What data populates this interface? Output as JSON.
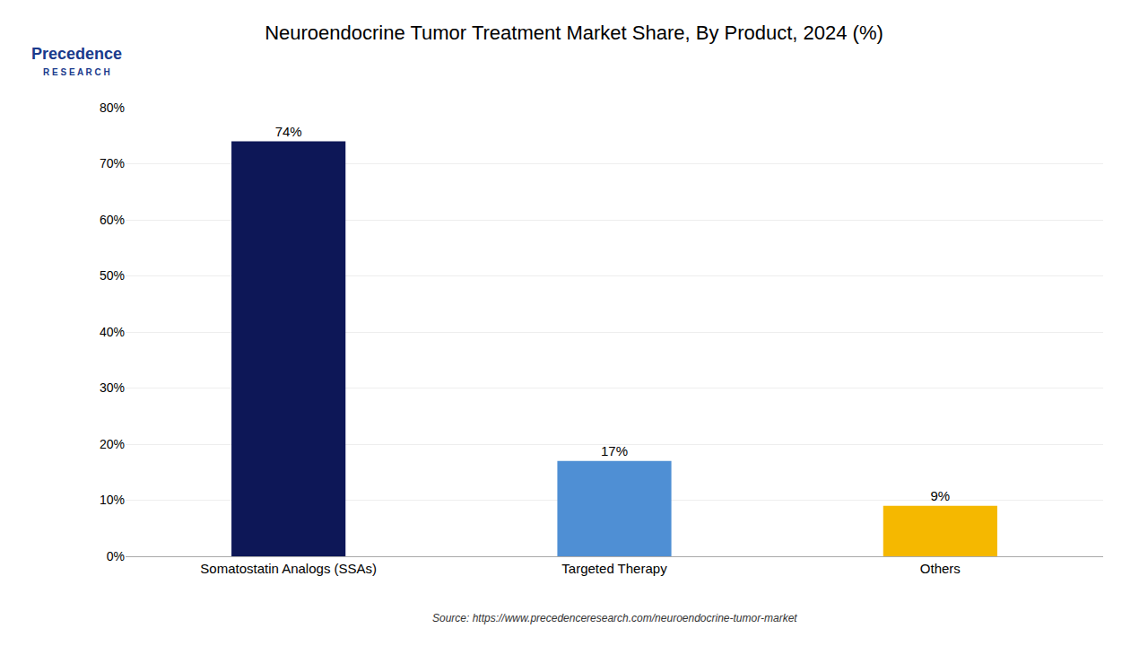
{
  "chart_data": {
    "type": "bar",
    "title": "Neuroendocrine Tumor Treatment Market Share, By Product, 2024 (%)",
    "categories": [
      "Somatostatin Analogs (SSAs)",
      "Targeted Therapy",
      "Others"
    ],
    "values": [
      74,
      17,
      9
    ],
    "value_labels": [
      "74%",
      "17%",
      "9%"
    ],
    "data_labels": true,
    "colors": [
      "#0d1757",
      "#4f8fd4",
      "#f5b800"
    ],
    "ylim": [
      0,
      80
    ],
    "yticks": [
      {
        "value": 0,
        "label": "0%"
      },
      {
        "value": 10,
        "label": "10%"
      },
      {
        "value": 20,
        "label": "20%"
      },
      {
        "value": 30,
        "label": "30%"
      },
      {
        "value": 40,
        "label": "40%"
      },
      {
        "value": 50,
        "label": "50%"
      },
      {
        "value": 60,
        "label": "60%"
      },
      {
        "value": 70,
        "label": "70%"
      },
      {
        "value": 80,
        "label": "80%"
      }
    ],
    "grid": true,
    "annotations": [
      "Source: https://www.precedenceresearch.com/neuroendocrine-tumor-market",
      "Precedence",
      "R E S E A R C H"
    ]
  }
}
